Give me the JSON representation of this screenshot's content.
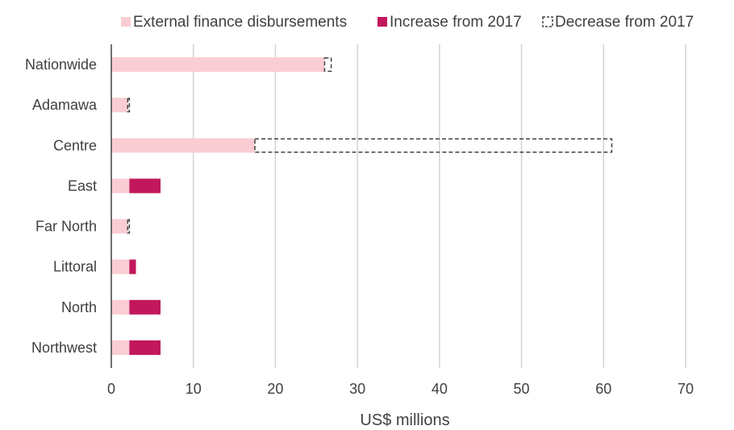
{
  "chart_data": {
    "type": "bar",
    "orientation": "horizontal",
    "stacked": true,
    "categories": [
      "Nationwide",
      "Adamawa",
      "Centre",
      "East",
      "Far North",
      "Littoral",
      "North",
      "Northwest"
    ],
    "series": [
      {
        "name": "External finance disbursements",
        "kind": "base",
        "values": [
          26,
          2,
          17.5,
          2.2,
          2,
          2.2,
          2.2,
          2.2
        ],
        "color": "#f9cdd3"
      },
      {
        "name": "Increase from 2017",
        "kind": "increase",
        "values": [
          0,
          0,
          0,
          3.8,
          0,
          0.8,
          3.8,
          3.8
        ],
        "color": "#c2185b"
      },
      {
        "name": "Decrease from 2017",
        "kind": "decrease",
        "values": [
          0.8,
          0.2,
          43.5,
          0,
          0.2,
          0,
          0,
          0
        ],
        "color": "#404040"
      }
    ],
    "xlabel": "US$ millions",
    "xlim": [
      0,
      70
    ],
    "xticks": [
      0,
      10,
      20,
      30,
      40,
      50,
      60,
      70
    ],
    "grid": true,
    "legend_position": "top"
  }
}
